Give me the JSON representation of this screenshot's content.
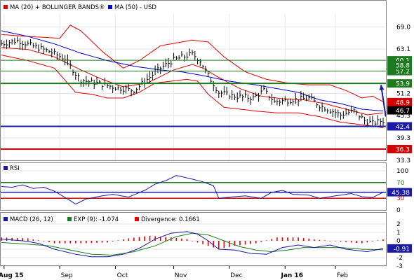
{
  "chart_data": [
    {
      "type": "line",
      "panel": "price",
      "legend": [
        {
          "name": "MA (20) + BOLLINGER BANDS®",
          "color": "#e00000"
        },
        {
          "name": "MA (50) - USD",
          "color": "#0000cc"
        }
      ],
      "ylim": [
        33.3,
        72.5
      ],
      "y_ticks": [
        "69.0",
        "63.1",
        "57.2",
        "51.2",
        "45.3",
        "39.3",
        "33.3"
      ],
      "x_ticks": [
        "Aug 15",
        "Sep",
        "Oct",
        "Nov",
        "Dec",
        "Jan 16",
        "Feb"
      ],
      "x_tick_positions": [
        1,
        22,
        43,
        65,
        86,
        107,
        126
      ],
      "n_bars": 145,
      "grid": true,
      "price": [
        [
          0,
          64.5
        ],
        [
          6,
          65.4
        ],
        [
          12,
          63.9
        ],
        [
          18,
          62.5
        ],
        [
          24,
          60.5
        ],
        [
          28,
          56.5
        ],
        [
          30,
          54.8
        ],
        [
          36,
          54.0
        ],
        [
          42,
          53.0
        ],
        [
          50,
          52.0
        ],
        [
          55,
          55.0
        ],
        [
          60,
          58.0
        ],
        [
          65,
          60.2
        ],
        [
          72,
          61.8
        ],
        [
          75,
          60.0
        ],
        [
          78,
          56.0
        ],
        [
          82,
          51.5
        ],
        [
          88,
          50.5
        ],
        [
          95,
          50.0
        ],
        [
          99,
          52.0
        ],
        [
          103,
          49.0
        ],
        [
          110,
          49.5
        ],
        [
          116,
          50.0
        ],
        [
          120,
          48.0
        ],
        [
          128,
          45.5
        ],
        [
          133,
          46.5
        ],
        [
          137,
          44.0
        ],
        [
          140,
          43.2
        ],
        [
          143,
          43.8
        ]
      ],
      "ma20": [
        [
          0,
          63.5
        ],
        [
          10,
          63.0
        ],
        [
          20,
          61.0
        ],
        [
          30,
          57.5
        ],
        [
          38,
          55.0
        ],
        [
          46,
          53.0
        ],
        [
          55,
          54.0
        ],
        [
          65,
          57.5
        ],
        [
          72,
          59.0
        ],
        [
          76,
          58.0
        ],
        [
          82,
          55.5
        ],
        [
          90,
          52.5
        ],
        [
          98,
          50.5
        ],
        [
          106,
          49.8
        ],
        [
          114,
          49.5
        ],
        [
          122,
          48.5
        ],
        [
          130,
          47.0
        ],
        [
          138,
          45.5
        ],
        [
          144,
          46.0
        ]
      ],
      "bb_upper": [
        [
          0,
          67.0
        ],
        [
          10,
          66.5
        ],
        [
          22,
          66.0
        ],
        [
          26,
          69.5
        ],
        [
          30,
          68.0
        ],
        [
          38,
          62.5
        ],
        [
          46,
          58.0
        ],
        [
          52,
          60.0
        ],
        [
          60,
          64.0
        ],
        [
          72,
          65.5
        ],
        [
          78,
          65.0
        ],
        [
          84,
          61.0
        ],
        [
          92,
          57.0
        ],
        [
          100,
          55.0
        ],
        [
          108,
          54.0
        ],
        [
          116,
          53.5
        ],
        [
          124,
          53.5
        ],
        [
          130,
          52.0
        ],
        [
          136,
          50.0
        ],
        [
          140,
          50.5
        ],
        [
          144,
          49.0
        ]
      ],
      "bb_lower": [
        [
          0,
          61.5
        ],
        [
          10,
          60.0
        ],
        [
          20,
          58.0
        ],
        [
          28,
          51.5
        ],
        [
          34,
          51.0
        ],
        [
          40,
          50.0
        ],
        [
          46,
          50.0
        ],
        [
          52,
          51.5
        ],
        [
          58,
          54.0
        ],
        [
          64,
          54.5
        ],
        [
          70,
          55.0
        ],
        [
          74,
          54.5
        ],
        [
          78,
          51.0
        ],
        [
          84,
          47.5
        ],
        [
          90,
          47.0
        ],
        [
          96,
          46.5
        ],
        [
          104,
          46.0
        ],
        [
          112,
          46.0
        ],
        [
          120,
          45.0
        ],
        [
          128,
          43.5
        ],
        [
          134,
          43.0
        ],
        [
          140,
          42.5
        ],
        [
          144,
          42.0
        ]
      ],
      "ma50": [
        [
          0,
          68.0
        ],
        [
          10,
          66.5
        ],
        [
          20,
          64.5
        ],
        [
          30,
          62.0
        ],
        [
          40,
          60.0
        ],
        [
          50,
          58.5
        ],
        [
          60,
          57.5
        ],
        [
          68,
          57.0
        ],
        [
          76,
          56.0
        ],
        [
          86,
          54.5
        ],
        [
          96,
          53.5
        ],
        [
          104,
          52.5
        ],
        [
          112,
          51.5
        ],
        [
          120,
          49.5
        ],
        [
          128,
          48.5
        ],
        [
          136,
          47.0
        ],
        [
          144,
          46.5
        ]
      ],
      "h_lines": [
        {
          "value": 60.1,
          "label": "60.1",
          "color": "#1e7a1e"
        },
        {
          "value": 57.2,
          "label": "57.2",
          "color": "#1e7a1e"
        },
        {
          "value": 53.9,
          "label": "53.9",
          "color": "#1e7a1e"
        },
        {
          "value": 42.4,
          "label": "42.4",
          "color": "#1a1aa6"
        },
        {
          "value": 36.3,
          "label": "36.3",
          "color": "#d20000"
        }
      ],
      "value_tags": [
        {
          "value": 58.8,
          "label": "58.8",
          "color": "#1e7a1e"
        },
        {
          "value": 48.9,
          "label": "48.9",
          "color": "#d20000"
        },
        {
          "value": 46.7,
          "label": "46.7",
          "color": "#000000"
        }
      ],
      "arrow": {
        "from": [
          145,
          45.0
        ],
        "to": [
          154,
          53.5
        ]
      }
    },
    {
      "type": "line",
      "panel": "rsi",
      "legend": [
        {
          "name": "RSI",
          "color": "#1a1aa6"
        }
      ],
      "ylim": [
        0,
        100
      ],
      "y_ticks": [
        "100",
        "50",
        "0"
      ],
      "h_lines": [
        {
          "value": 70,
          "label": "70",
          "color": "#1e7a1e"
        },
        {
          "value": 45.38,
          "label": "45.38",
          "color": "#1a1aa6"
        },
        {
          "value": 30,
          "label": "30",
          "color": "#d20000"
        }
      ],
      "series": [
        [
          0,
          60
        ],
        [
          4,
          58
        ],
        [
          8,
          64
        ],
        [
          12,
          55
        ],
        [
          16,
          58
        ],
        [
          20,
          48
        ],
        [
          25,
          28
        ],
        [
          28,
          15
        ],
        [
          32,
          28
        ],
        [
          38,
          36
        ],
        [
          42,
          40
        ],
        [
          48,
          33
        ],
        [
          54,
          50
        ],
        [
          58,
          66
        ],
        [
          62,
          75
        ],
        [
          66,
          88
        ],
        [
          70,
          82
        ],
        [
          76,
          72
        ],
        [
          80,
          62
        ],
        [
          82,
          30
        ],
        [
          88,
          34
        ],
        [
          92,
          36
        ],
        [
          98,
          30
        ],
        [
          102,
          45
        ],
        [
          106,
          50
        ],
        [
          110,
          40
        ],
        [
          116,
          38
        ],
        [
          120,
          30
        ],
        [
          126,
          36
        ],
        [
          132,
          42
        ],
        [
          136,
          34
        ],
        [
          140,
          32
        ],
        [
          144,
          45
        ]
      ]
    },
    {
      "type": "line",
      "panel": "macd",
      "legend": [
        {
          "name": "MACD (26, 12)",
          "color": "#1a1aa6"
        },
        {
          "name": "EXP (9): -1.074",
          "color": "#1e7a1e"
        },
        {
          "name": "Divergence: 0.1661",
          "color": "#e00000"
        }
      ],
      "ylim": [
        -3,
        2
      ],
      "y_ticks": [
        "2",
        "1",
        "0",
        "-1",
        "-2",
        "-3"
      ],
      "value_tags": [
        {
          "value": -0.91,
          "label": "-0.91",
          "color": "#1a1aa6"
        }
      ],
      "macd": [
        [
          0,
          0.2
        ],
        [
          8,
          0.0
        ],
        [
          14,
          -0.3
        ],
        [
          20,
          -1.0
        ],
        [
          28,
          -1.6
        ],
        [
          34,
          -1.9
        ],
        [
          40,
          -1.9
        ],
        [
          46,
          -1.6
        ],
        [
          52,
          -0.9
        ],
        [
          58,
          0.2
        ],
        [
          64,
          0.9
        ],
        [
          70,
          1.1
        ],
        [
          74,
          0.8
        ],
        [
          78,
          0.0
        ],
        [
          82,
          -1.0
        ],
        [
          88,
          -1.1
        ],
        [
          94,
          -1.5
        ],
        [
          100,
          -1.6
        ],
        [
          106,
          -0.8
        ],
        [
          112,
          -0.5
        ],
        [
          118,
          -0.8
        ],
        [
          124,
          -0.5
        ],
        [
          130,
          -1.0
        ],
        [
          138,
          -1.3
        ],
        [
          144,
          -0.91
        ]
      ],
      "signal": [
        [
          0,
          -0.2
        ],
        [
          10,
          -0.4
        ],
        [
          18,
          -0.6
        ],
        [
          26,
          -1.1
        ],
        [
          34,
          -1.6
        ],
        [
          42,
          -1.7
        ],
        [
          50,
          -1.3
        ],
        [
          58,
          -0.6
        ],
        [
          66,
          0.5
        ],
        [
          72,
          0.9
        ],
        [
          78,
          0.7
        ],
        [
          84,
          0.0
        ],
        [
          90,
          -0.7
        ],
        [
          96,
          -1.1
        ],
        [
          102,
          -1.3
        ],
        [
          108,
          -1.1
        ],
        [
          114,
          -0.8
        ],
        [
          120,
          -0.8
        ],
        [
          128,
          -0.8
        ],
        [
          136,
          -1.0
        ],
        [
          144,
          -1.07
        ]
      ],
      "divergence": [
        [
          0,
          0.4
        ],
        [
          10,
          0.3
        ],
        [
          20,
          -0.3
        ],
        [
          30,
          -0.3
        ],
        [
          40,
          -0.2
        ],
        [
          48,
          0.3
        ],
        [
          56,
          0.6
        ],
        [
          64,
          0.4
        ],
        [
          70,
          0.2
        ],
        [
          76,
          -0.4
        ],
        [
          82,
          -1.0
        ],
        [
          88,
          -0.6
        ],
        [
          96,
          -0.3
        ],
        [
          104,
          0.4
        ],
        [
          112,
          0.4
        ],
        [
          120,
          0.1
        ],
        [
          128,
          -0.1
        ],
        [
          136,
          -0.3
        ],
        [
          144,
          0.17
        ]
      ]
    }
  ]
}
